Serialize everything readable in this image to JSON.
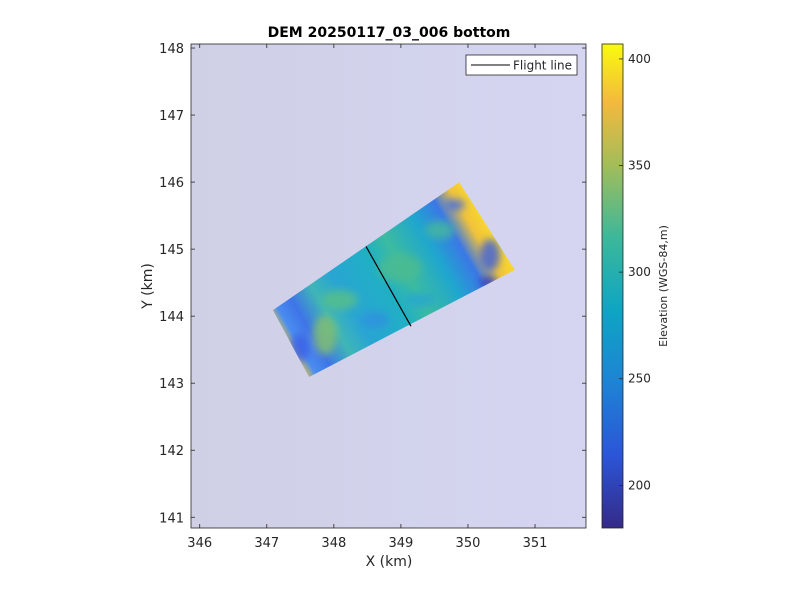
{
  "chart_data": {
    "type": "heatmap",
    "title": "DEM 20250117_03_006 bottom",
    "xlabel": "X (km)",
    "ylabel": "Y (km)",
    "xlim": [
      345.87,
      351.76
    ],
    "ylim": [
      140.84,
      148.06
    ],
    "xticks": [
      346,
      347,
      348,
      349,
      350,
      351
    ],
    "yticks": [
      141,
      142,
      143,
      144,
      145,
      146,
      147,
      148
    ],
    "grid": false,
    "legend": {
      "placement": "top-right",
      "entries": [
        "Flight line"
      ]
    },
    "colorbar": {
      "label": "Elevation (WGS-84,m)",
      "clim": [
        180,
        407
      ],
      "ticks": [
        200,
        250,
        300,
        350,
        400
      ],
      "colormap": "parula"
    },
    "dem_footprint_corners_km": [
      [
        347.09,
        144.09
      ],
      [
        349.87,
        146.0
      ],
      [
        350.7,
        144.69
      ],
      [
        347.63,
        143.09
      ]
    ],
    "flight_line": {
      "name": "Flight line",
      "x": [
        348.48,
        349.15
      ],
      "y": [
        145.04,
        143.85
      ],
      "color": "#000000"
    },
    "background_color": "#d3d4ee"
  }
}
